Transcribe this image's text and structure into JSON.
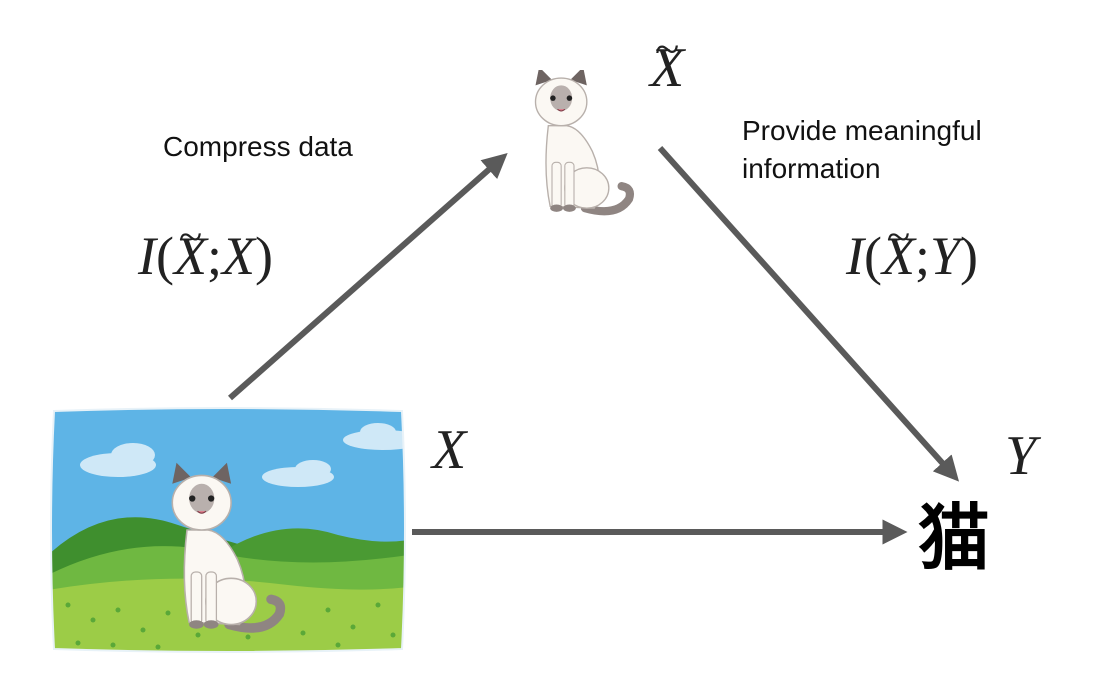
{
  "nodes": {
    "x_label": "X",
    "x_tilde_label": "X",
    "y_label": "Y",
    "y_value": "猫"
  },
  "edges": {
    "compress": {
      "text": "Compress data",
      "formula": {
        "func": "I",
        "open": "(",
        "first": "X",
        "sep": ";",
        "second": "X",
        "close": ")"
      }
    },
    "provide": {
      "text_line1": "Provide meaningful",
      "text_line2": "information",
      "formula": {
        "func": "I",
        "open": "(",
        "first": "X",
        "sep": ";",
        "second": "Y",
        "close": ")"
      }
    }
  },
  "colors": {
    "arrow": "#5a5a5a",
    "sky": "#5eb4e6",
    "hill_dark": "#3f8f2e",
    "hill_light": "#6fb841",
    "grass": "#9ccc47",
    "cat_body": "#fbf8f3",
    "cat_points": "#8f8582"
  },
  "icons": [
    "cat-illustration",
    "landscape-illustration",
    "arrow-head"
  ]
}
